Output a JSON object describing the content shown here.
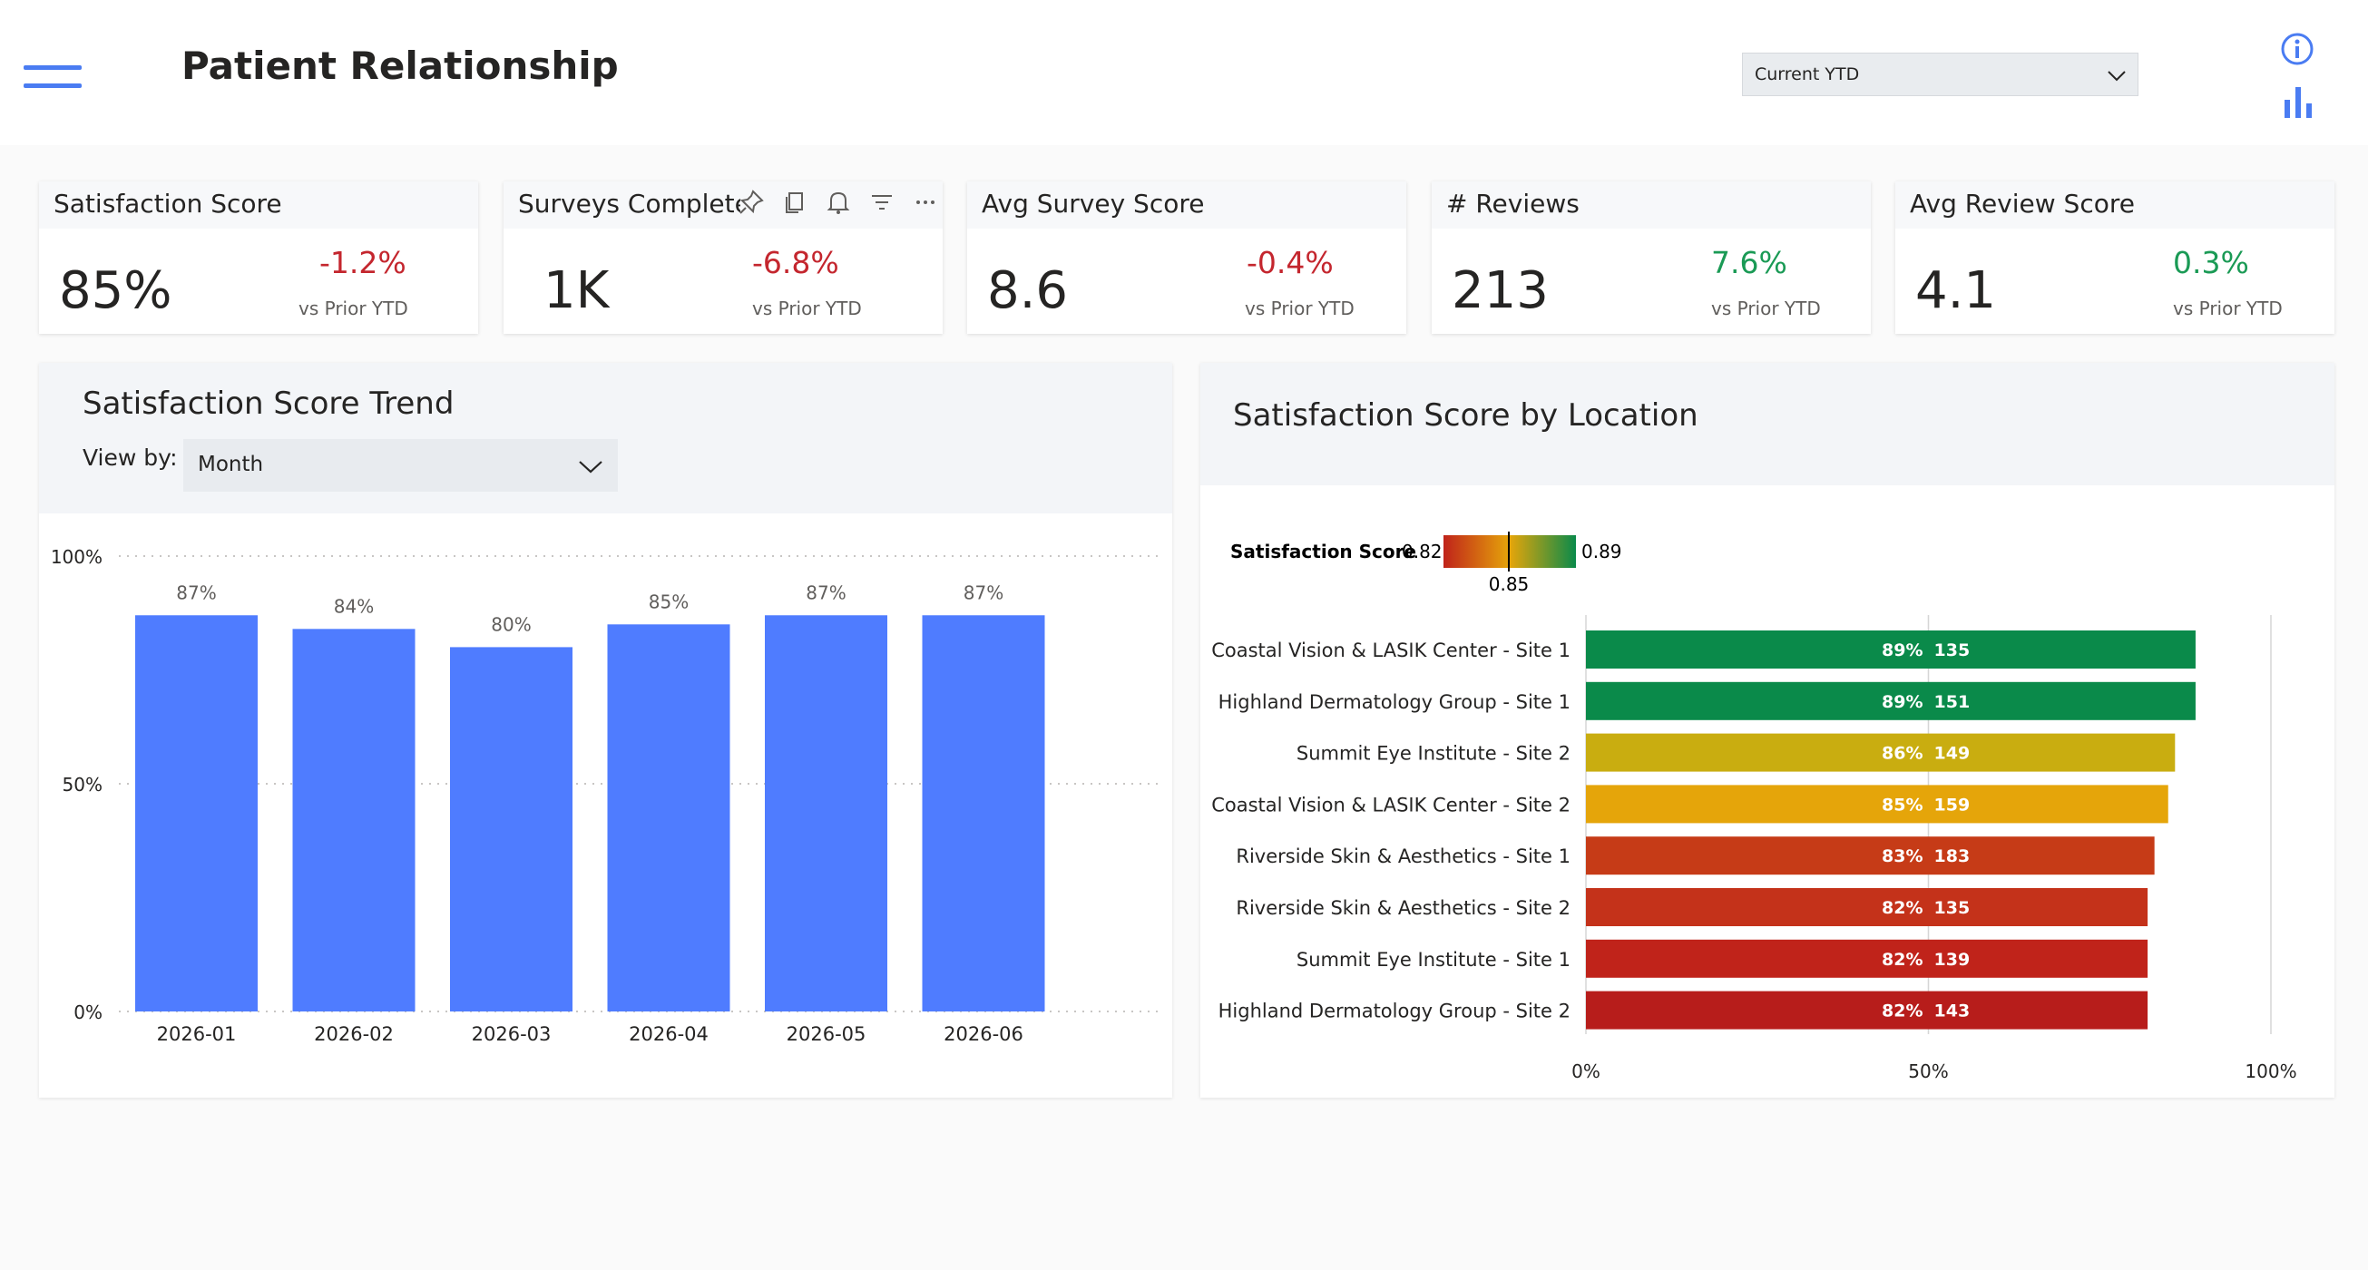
{
  "header": {
    "title": "Patient Relationship",
    "period_select": {
      "value": "Current YTD"
    },
    "icons": [
      "hamburger-menu-icon",
      "info-icon",
      "bar-chart-icon",
      "chevron-down-icon"
    ]
  },
  "kpis": [
    {
      "title": "Satisfaction Score",
      "value": "85%",
      "delta": "-1.2%",
      "note": "vs Prior YTD",
      "trend": "negative"
    },
    {
      "title": "Surveys Complete",
      "value": "1K",
      "delta": "-6.8%",
      "note": "vs Prior YTD",
      "trend": "negative"
    },
    {
      "title": "Avg Survey Score",
      "value": "8.6",
      "delta": "-0.4%",
      "note": "vs Prior YTD",
      "trend": "negative"
    },
    {
      "title": "# Reviews",
      "value": "213",
      "delta": "7.6%",
      "note": "vs Prior YTD",
      "trend": "positive"
    },
    {
      "title": "Avg Review Score",
      "value": "4.1",
      "delta": "0.3%",
      "note": "vs Prior YTD",
      "trend": "positive"
    }
  ],
  "card_tools": [
    "pin-icon",
    "copy-icon",
    "bell-icon",
    "filter-icon",
    "more-options-icon"
  ],
  "trend_panel": {
    "title": "Satisfaction Score Trend",
    "view_by_label": "View by:",
    "view_by_value": "Month"
  },
  "location_panel": {
    "title": "Satisfaction Score by Location"
  },
  "colors": {
    "accent": "#4a7cf2",
    "bar": "#4f7cff",
    "negative": "#c4262e",
    "positive": "#1a9a55",
    "scale_low": "#c0231a",
    "scale_mid": "#e5a50a",
    "scale_high": "#0a8a4a"
  },
  "chart_data": [
    {
      "type": "bar",
      "categories": [
        "2026-01",
        "2026-02",
        "2026-03",
        "2026-04",
        "2026-05",
        "2026-06"
      ],
      "values": [
        0.87,
        0.84,
        0.8,
        0.85,
        0.87,
        0.87
      ],
      "data_labels": [
        "87%",
        "84%",
        "80%",
        "85%",
        "87%",
        "87%"
      ],
      "y_ticks": [
        "0%",
        "50%",
        "100%"
      ],
      "ylim": [
        0,
        1
      ],
      "grid": true
    },
    {
      "type": "bar",
      "orientation": "horizontal",
      "categories": [
        "Coastal Vision & LASIK Center - Site 1",
        "Highland Dermatology Group - Site 1",
        "Summit Eye Institute - Site 2",
        "Coastal Vision & LASIK Center - Site 2",
        "Riverside Skin & Aesthetics - Site 1",
        "Riverside Skin & Aesthetics - Site 2",
        "Summit Eye Institute - Site 1",
        "Highland Dermatology Group - Site 2"
      ],
      "values": [
        0.89,
        0.89,
        0.86,
        0.85,
        0.83,
        0.82,
        0.82,
        0.82
      ],
      "data_labels": [
        "89%",
        "89%",
        "86%",
        "85%",
        "83%",
        "82%",
        "82%",
        "82%"
      ],
      "counts": [
        "135",
        "151",
        "149",
        "159",
        "183",
        "135",
        "139",
        "143"
      ],
      "bar_colors": [
        "#0a8a4a",
        "#0a8a4a",
        "#c9ad10",
        "#e5a50a",
        "#c63b17",
        "#c4321a",
        "#c0231a",
        "#b71d1b"
      ],
      "x_ticks": [
        "0%",
        "50%",
        "100%"
      ],
      "xlim": [
        0,
        1
      ],
      "legend": {
        "title": "Satisfaction Score",
        "min": "0.82",
        "max": "0.89",
        "marker": "0.85"
      }
    }
  ]
}
